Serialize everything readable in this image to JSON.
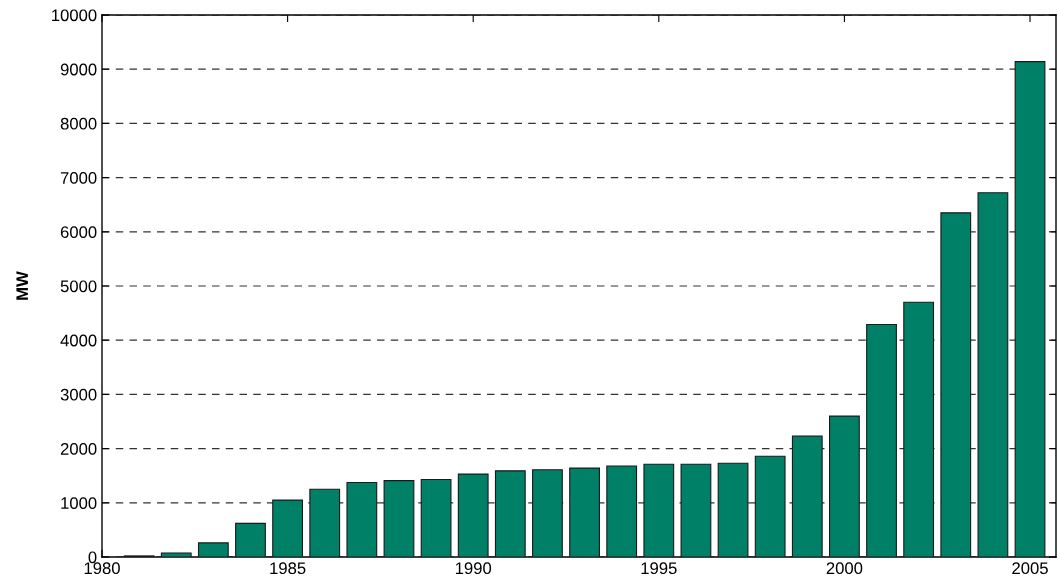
{
  "chart_data": {
    "type": "bar",
    "ylabel": "MW",
    "x": [
      1981,
      1982,
      1983,
      1984,
      1985,
      1986,
      1987,
      1988,
      1989,
      1990,
      1991,
      1992,
      1993,
      1994,
      1995,
      1996,
      1997,
      1998,
      1999,
      2000,
      2001,
      2002,
      2003,
      2004,
      2005
    ],
    "values": [
      20,
      75,
      260,
      620,
      1050,
      1250,
      1375,
      1410,
      1430,
      1530,
      1590,
      1610,
      1640,
      1680,
      1710,
      1710,
      1730,
      1860,
      2230,
      2600,
      4290,
      4700,
      6350,
      6720,
      9140
    ],
    "color": "#008066",
    "xlim": [
      1980,
      2005.7
    ],
    "xticks": [
      1980,
      1985,
      1990,
      1995,
      2000,
      2005
    ],
    "ylim": [
      0,
      10000
    ],
    "yticks": [
      0,
      1000,
      2000,
      3000,
      4000,
      5000,
      6000,
      7000,
      8000,
      9000,
      10000
    ],
    "grid": "y"
  }
}
